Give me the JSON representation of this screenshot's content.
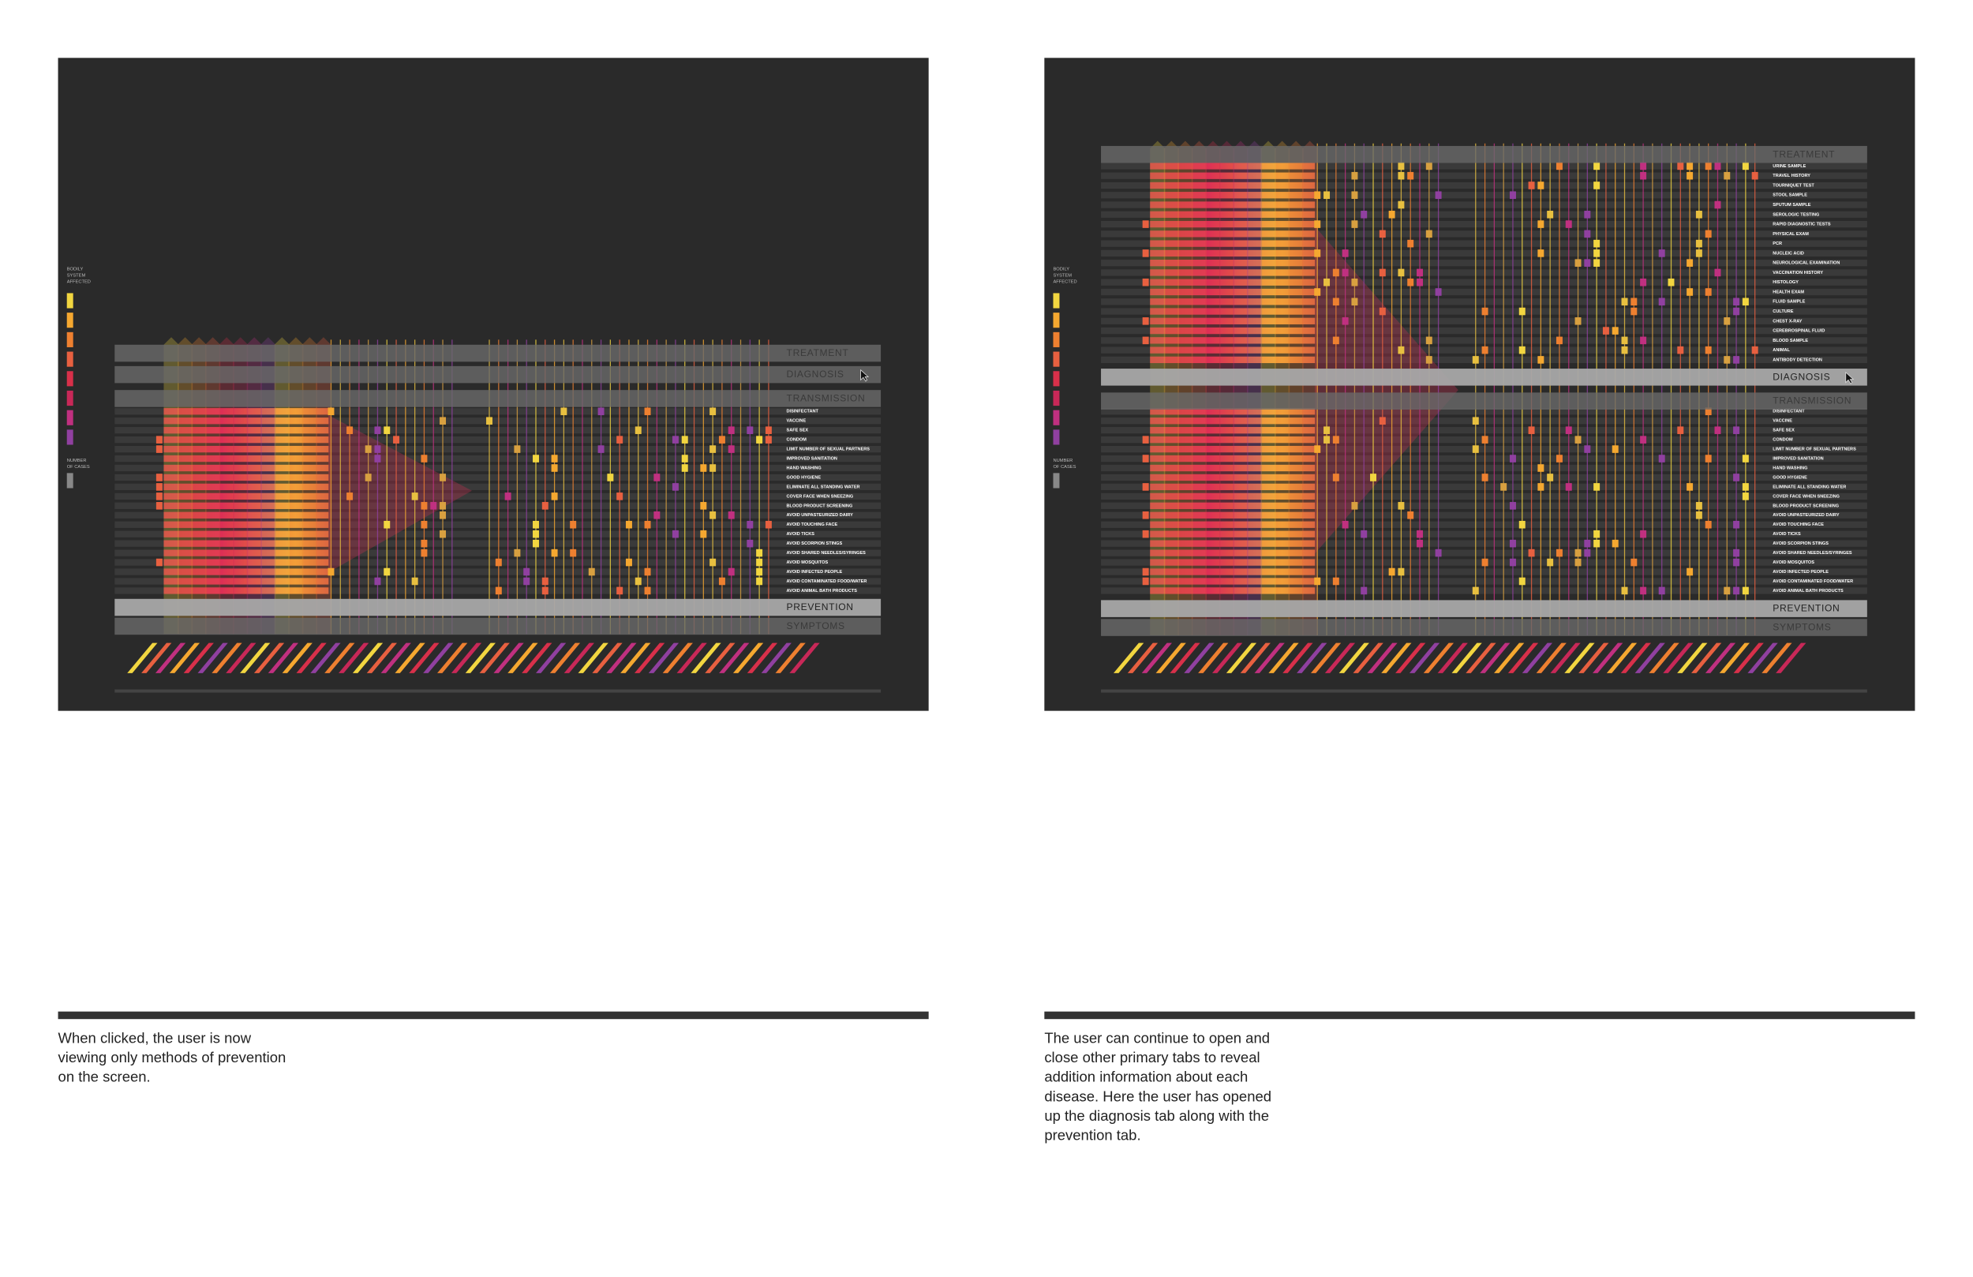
{
  "panels": [
    {
      "legend_title": [
        "BODILY",
        "SYSTEM",
        "AFFECTED"
      ],
      "legend_cases": [
        "NUMBER",
        "OF CASES"
      ],
      "tabs": [
        "TREATMENT",
        "DIAGNOSIS",
        "TRANSMISSION",
        "PREVENTION",
        "SYMPTOMS"
      ],
      "prevention_rows": [
        "DISINFECTANT",
        "VACCINE",
        "SAFE SEX",
        "CONDOM",
        "LIMIT NUMBER OF SEXUAL PARTNERS",
        "IMPROVED SANITATION",
        "HAND WASHING",
        "GOOD HYGIENE",
        "ELIMINATE ALL STANDING WATER",
        "COVER FACE WHEN SNEEZING",
        "BLOOD PRODUCT SCREENING",
        "AVOID UNPASTEURIZED DAIRY",
        "AVOID TOUCHING FACE",
        "AVOID TICKS",
        "AVOID SCORPION STINGS",
        "AVOID SHARED NEEDLES/SYRINGES",
        "AVOID MOSQUITOS",
        "AVOID INFECTED PEOPLE",
        "AVOID CONTAMINATED FOOD/WATER",
        "AVOID ANIMAL BATH PRODUCTS"
      ],
      "caption": [
        "When clicked, the user is now",
        "viewing only methods of prevention",
        "on the screen."
      ]
    },
    {
      "legend_title": [
        "BODILY",
        "SYSTEM",
        "AFFECTED"
      ],
      "legend_cases": [
        "NUMBER",
        "OF CASES"
      ],
      "tabs": [
        "TREATMENT",
        "DIAGNOSIS",
        "TRANSMISSION",
        "PREVENTION",
        "SYMPTOMS"
      ],
      "diagnosis_rows": [
        "URINE SAMPLE",
        "TRAVEL HISTORY",
        "TOURNIQUET TEST",
        "STOOL SAMPLE",
        "SPUTUM SAMPLE",
        "SEROLOGIC TESTING",
        "RAPID DIAGNOSTIC TESTS",
        "PHYSICAL EXAM",
        "PCR",
        "NUCLEIC ACID",
        "NEUROLOGICAL EXAMINATION",
        "VACCINATION HISTORY",
        "HISTOLOGY",
        "HEALTH EXAM",
        "FLUID SAMPLE",
        "CULTURE",
        "CHEST X-RAY",
        "CEREBROSPINAL FLUID",
        "BLOOD SAMPLE",
        "ANIMAL",
        "ANTIBODY DETECTION"
      ],
      "prevention_rows": [
        "DISINFECTANT",
        "VACCINE",
        "SAFE SEX",
        "CONDOM",
        "LIMIT NUMBER OF SEXUAL PARTNERS",
        "IMPROVED SANITATION",
        "HAND WASHING",
        "GOOD HYGIENE",
        "ELIMINATE ALL STANDING WATER",
        "COVER FACE WHEN SNEEZING",
        "BLOOD PRODUCT SCREENING",
        "AVOID UNPASTEURIZED DAIRY",
        "AVOID TOUCHING FACE",
        "AVOID TICKS",
        "AVOID SCORPION STINGS",
        "AVOID SHARED NEEDLES/SYRINGES",
        "AVOID MOSQUITOS",
        "AVOID INFECTED PEOPLE",
        "AVOID CONTAMINATED FOOD/WATER",
        "AVOID ANIMAL BATH PRODUCTS"
      ],
      "caption": [
        "The user can continue to open and",
        "close other primary tabs to reveal",
        "addition information about each",
        "disease. Here the user has opened",
        "up the diagnosis tab along with the",
        "prevention tab."
      ]
    }
  ]
}
